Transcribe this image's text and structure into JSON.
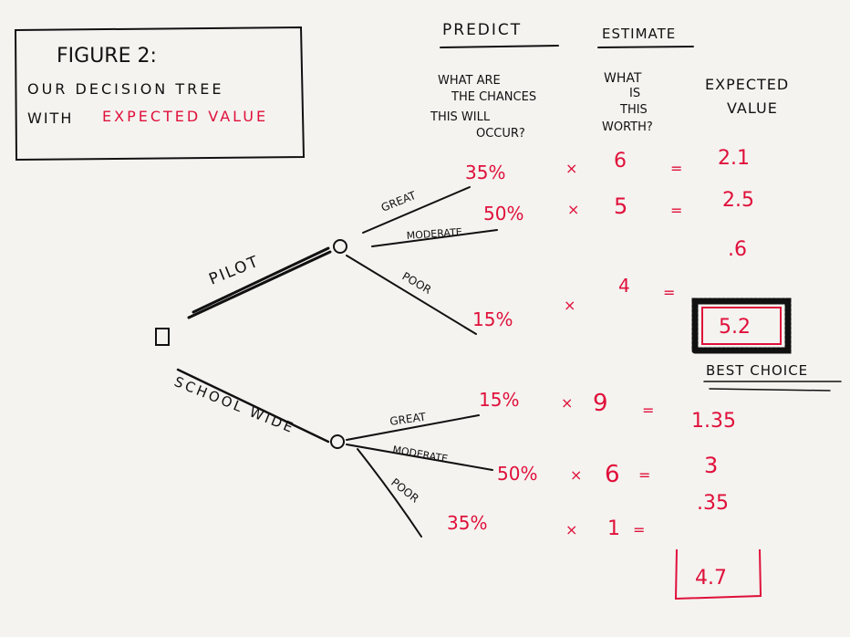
{
  "title_box": {
    "line1": "FIGURE 2:",
    "line2": "OUR DECISION TREE",
    "line3_black": "WITH",
    "line3_red": "EXPECTED VALUE"
  },
  "headers": {
    "predict": "PREDICT",
    "estimate": "ESTIMATE",
    "chances": [
      "WHAT ARE",
      "THE CHANCES",
      "THIS WILL",
      "OCCUR?"
    ],
    "worth": [
      "WHAT",
      "IS",
      "THIS",
      "WORTH?"
    ],
    "expected": [
      "EXPECTED",
      "VALUE"
    ]
  },
  "tree": {
    "pilot": {
      "label": "PILOT",
      "branches": [
        {
          "label": "GREAT",
          "chance": "35%",
          "times": "×",
          "worth": "6",
          "equals": "=",
          "value": "2.1"
        },
        {
          "label": "MODERATE",
          "chance": "50%",
          "times": "×",
          "worth": "5",
          "equals": "=",
          "value": "2.5"
        },
        {
          "label": "POOR",
          "chance": "15%",
          "times": "×",
          "worth": "4",
          "equals": "=",
          "value": ".6"
        }
      ],
      "total": "5.2",
      "note": "BEST CHOICE"
    },
    "school_wide": {
      "label": "SCHOOL WIDE",
      "branches": [
        {
          "label": "GREAT",
          "chance": "15%",
          "times": "×",
          "worth": "9",
          "equals": "=",
          "value": "1.35"
        },
        {
          "label": "MODERATE",
          "chance": "50%",
          "times": "×",
          "worth": "6",
          "equals": "=",
          "value": "3"
        },
        {
          "label": "POOR",
          "chance": "35%",
          "times": "×",
          "worth": "1",
          "equals": "=",
          "value": ".35"
        }
      ],
      "total": "4.7"
    }
  },
  "colors": {
    "ink": "#111111",
    "accent": "#e0103a",
    "background": "#f4f3f0"
  }
}
